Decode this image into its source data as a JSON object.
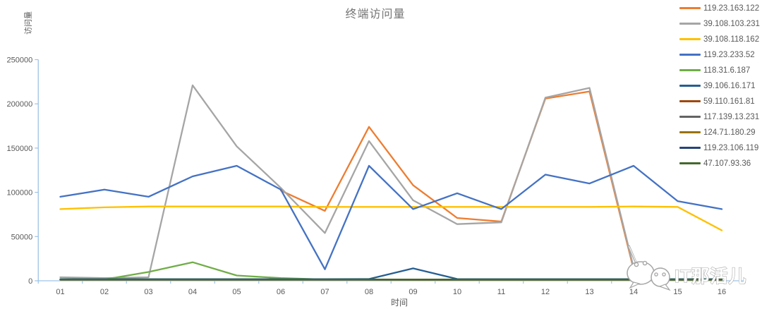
{
  "title": "终端访问量",
  "y_axis_title": "访问量",
  "x_axis_title": "时间",
  "colors": {
    "axis": "#9DC3E6",
    "tick_text": "#595959",
    "title_text": "#767676",
    "watermark_outline": "#A6A6A6",
    "watermark_fill": "#FFFFFF"
  },
  "watermark": {
    "text": "IT那活儿",
    "logo": "wechat-icon"
  },
  "chart_data": {
    "type": "line",
    "title": "终端访问量",
    "xlabel": "时间",
    "ylabel": "访问量",
    "x": [
      "01",
      "02",
      "03",
      "04",
      "05",
      "06",
      "07",
      "08",
      "09",
      "10",
      "11",
      "12",
      "13",
      "14",
      "15",
      "16"
    ],
    "ylim": [
      0,
      250000
    ],
    "yticks": [
      0,
      50000,
      100000,
      150000,
      200000,
      250000
    ],
    "grid": false,
    "legend_position": "right",
    "series": [
      {
        "name": "119.23.163.122",
        "color": "#ED7D31",
        "values": [
          null,
          null,
          null,
          null,
          null,
          102000,
          79000,
          174000,
          108000,
          71000,
          67000,
          206000,
          214000,
          13000,
          null,
          null
        ]
      },
      {
        "name": "39.108.103.231",
        "color": "#A5A5A5",
        "values": [
          4000,
          3000,
          4000,
          221000,
          152000,
          105000,
          54000,
          158000,
          91000,
          64000,
          66000,
          207000,
          218000,
          15000,
          null,
          null
        ]
      },
      {
        "name": "39.108.118.162",
        "color": "#FFC000",
        "values": [
          81000,
          83000,
          84000,
          84000,
          84000,
          84000,
          83500,
          83500,
          83500,
          83500,
          83500,
          83500,
          83500,
          84000,
          83500,
          57000
        ]
      },
      {
        "name": "119.23.233.52",
        "color": "#4472C4",
        "values": [
          95000,
          103000,
          95000,
          118000,
          130000,
          103000,
          13000,
          130000,
          81000,
          99000,
          81000,
          120000,
          110000,
          130000,
          90000,
          81000
        ]
      },
      {
        "name": "118.31.6.187",
        "color": "#70AD47",
        "values": [
          1500,
          1500,
          10000,
          21000,
          6000,
          3000,
          1500,
          1200,
          1000,
          1000,
          1000,
          1000,
          1000,
          1000,
          1000,
          1000
        ]
      },
      {
        "name": "39.106.16.171",
        "color": "#255E91",
        "values": [
          1800,
          1800,
          1800,
          1800,
          1800,
          1800,
          1800,
          2000,
          14000,
          2000,
          1800,
          1800,
          1800,
          1800,
          1800,
          1800
        ]
      },
      {
        "name": "59.110.161.81",
        "color": "#9E480E",
        "values": [
          1200,
          1200,
          1200,
          1200,
          1200,
          1200,
          1200,
          1200,
          1200,
          1200,
          1200,
          1200,
          1200,
          1200,
          1200,
          1200
        ]
      },
      {
        "name": "117.139.13.231",
        "color": "#636363",
        "values": [
          1200,
          1200,
          1200,
          1200,
          1200,
          1200,
          1200,
          1200,
          1200,
          1200,
          1200,
          1200,
          1200,
          1200,
          1200,
          1200
        ]
      },
      {
        "name": "124.71.180.29",
        "color": "#997300",
        "values": [
          1200,
          1200,
          1200,
          1200,
          1200,
          1200,
          1200,
          1200,
          1200,
          1200,
          1200,
          1200,
          1200,
          1200,
          1200,
          1200
        ]
      },
      {
        "name": "119.23.106.119",
        "color": "#264478",
        "values": [
          1500,
          1500,
          1500,
          1500,
          1500,
          1500,
          1500,
          1500,
          1500,
          1500,
          1500,
          1500,
          1500,
          1500,
          1500,
          1500
        ]
      },
      {
        "name": "47.107.93.36",
        "color": "#43682B",
        "values": [
          1500,
          1500,
          1500,
          1500,
          1500,
          1500,
          1500,
          1500,
          1500,
          1500,
          1500,
          1500,
          1500,
          1500,
          1500,
          1500
        ]
      }
    ]
  }
}
